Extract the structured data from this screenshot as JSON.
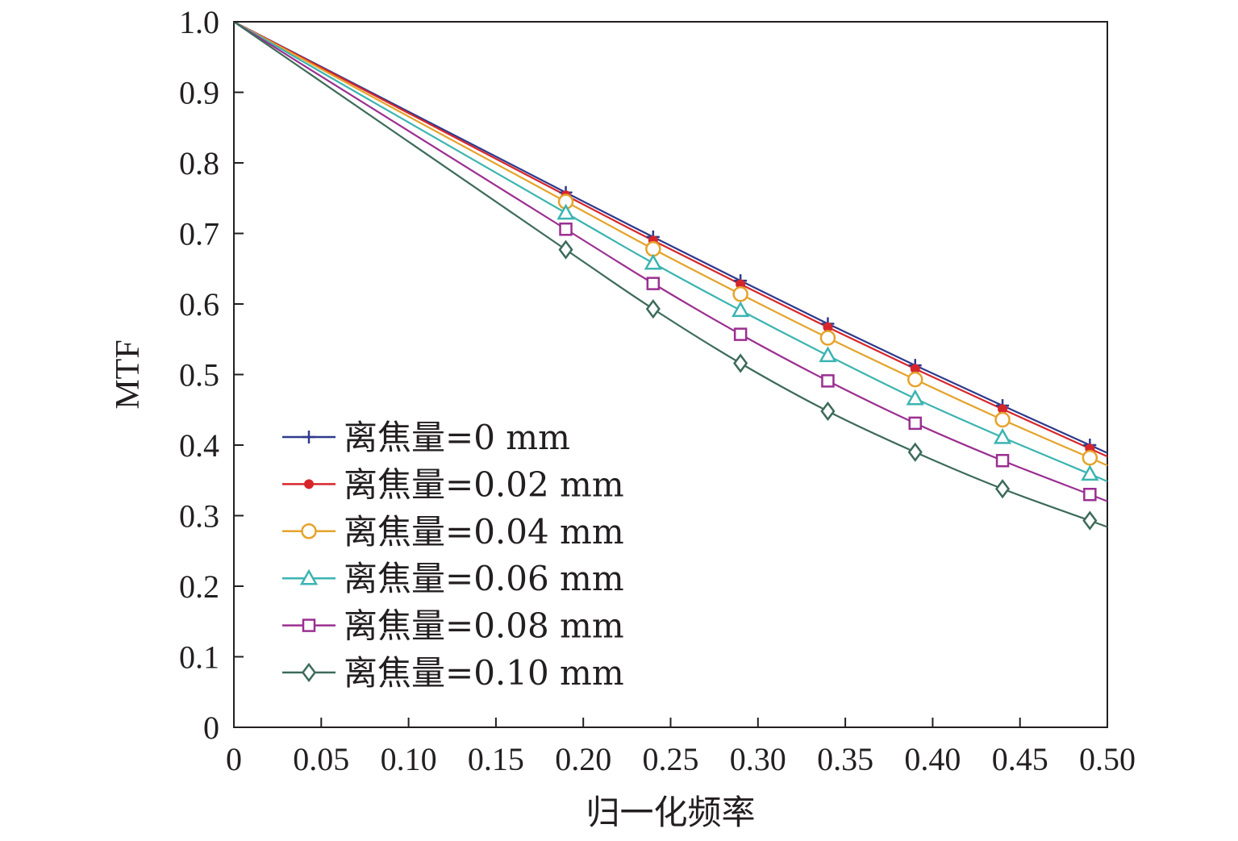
{
  "chart_data": {
    "type": "line",
    "xlabel": "归一化频率",
    "ylabel": "MTF",
    "xlim": [
      0,
      0.5
    ],
    "ylim": [
      0,
      1.0
    ],
    "x_ticks": [
      "0",
      "0.05",
      "0.10",
      "0.15",
      "0.20",
      "0.25",
      "0.30",
      "0.35",
      "0.40",
      "0.45",
      "0.50"
    ],
    "y_ticks": [
      "0",
      "0.1",
      "0.2",
      "0.3",
      "0.4",
      "0.5",
      "0.6",
      "0.7",
      "0.8",
      "0.9",
      "1.0"
    ],
    "legend_position": "bottom-left",
    "grid": false,
    "x": [
      0.19,
      0.24,
      0.29,
      0.34,
      0.39,
      0.44,
      0.49
    ],
    "series": [
      {
        "name": "离焦量=0 mm",
        "color": "#2e3a8c",
        "marker": "plus",
        "values": [
          0.758,
          0.695,
          0.633,
          0.572,
          0.513,
          0.456,
          0.4
        ]
      },
      {
        "name": "离焦量=0.02 mm",
        "color": "#d7262b",
        "marker": "dot",
        "values": [
          0.754,
          0.69,
          0.628,
          0.567,
          0.508,
          0.451,
          0.395
        ]
      },
      {
        "name": "离焦量=0.04 mm",
        "color": "#e5a32a",
        "marker": "circle",
        "values": [
          0.745,
          0.678,
          0.614,
          0.552,
          0.493,
          0.436,
          0.382
        ]
      },
      {
        "name": "离焦量=0.06 mm",
        "color": "#3bb4b1",
        "marker": "triangle",
        "values": [
          0.729,
          0.658,
          0.591,
          0.527,
          0.466,
          0.411,
          0.359
        ]
      },
      {
        "name": "离焦量=0.08 mm",
        "color": "#9b2f91",
        "marker": "square",
        "values": [
          0.706,
          0.629,
          0.557,
          0.491,
          0.431,
          0.378,
          0.33
        ]
      },
      {
        "name": "离焦量=0.10 mm",
        "color": "#3d6b59",
        "marker": "diamond",
        "values": [
          0.677,
          0.593,
          0.516,
          0.448,
          0.39,
          0.338,
          0.293
        ]
      }
    ]
  }
}
